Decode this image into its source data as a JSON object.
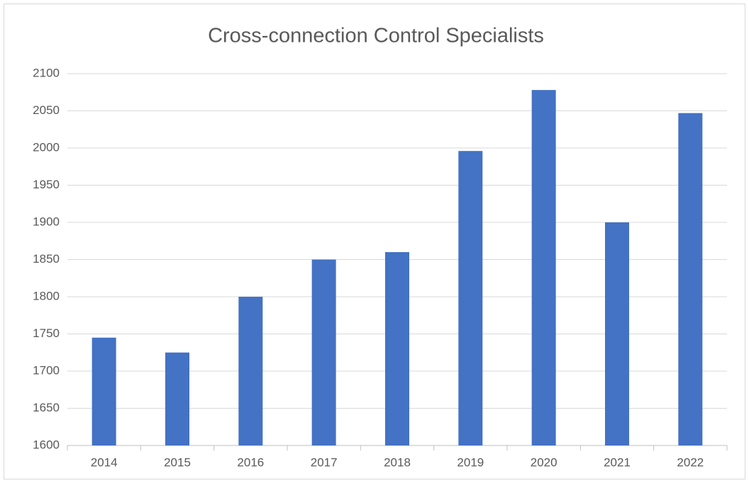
{
  "chart_data": {
    "type": "bar",
    "title": "Cross-connection Control Specialists",
    "categories": [
      "2014",
      "2015",
      "2016",
      "2017",
      "2018",
      "2019",
      "2020",
      "2021",
      "2022"
    ],
    "values": [
      1745,
      1725,
      1800,
      1850,
      1860,
      1996,
      2078,
      1900,
      2047
    ],
    "color": "#4472c4",
    "ylim": [
      1600,
      2100
    ],
    "yticks": [
      1600,
      1650,
      1700,
      1750,
      1800,
      1850,
      1900,
      1950,
      2000,
      2050,
      2100
    ],
    "grid": true
  }
}
